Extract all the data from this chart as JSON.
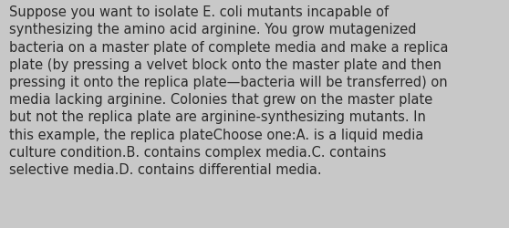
{
  "background_color": "#c8c8c8",
  "text_color": "#2a2a2a",
  "font_size": 10.5,
  "fig_width": 5.58,
  "fig_height": 2.51,
  "dpi": 100,
  "lines": [
    "Suppose you want to isolate E. coli mutants incapable of",
    "synthesizing the amino acid arginine. You grow mutagenized",
    "bacteria on a master plate of complete media and make a replica",
    "plate (by pressing a velvet block onto the master plate and then",
    "pressing it onto the replica plate—bacteria will be transferred) on",
    "media lacking arginine. Colonies that grew on the master plate",
    "but not the replica plate are arginine-synthesizing mutants. In",
    "this example, the replica plateChoose one:A. is a liquid media",
    "culture condition.B. contains complex media.C. contains",
    "selective media.D. contains differential media."
  ]
}
